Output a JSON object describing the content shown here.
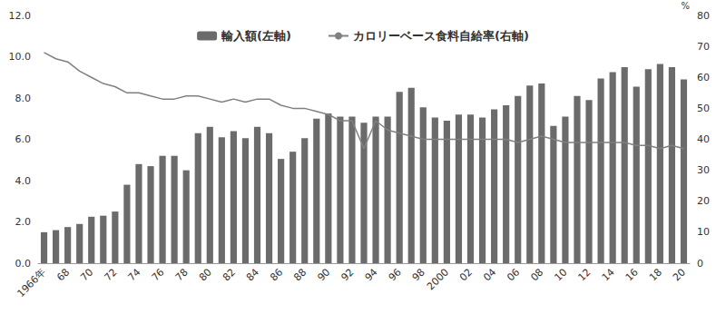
{
  "chart_data": {
    "type": "bar",
    "categories": [
      "1966年",
      null,
      "68",
      null,
      "70",
      null,
      "72",
      null,
      "74",
      null,
      "76",
      null,
      "78",
      null,
      "80",
      null,
      "82",
      null,
      "84",
      null,
      "86",
      null,
      "88",
      null,
      "90",
      null,
      "92",
      null,
      "94",
      null,
      "96",
      null,
      "98",
      null,
      "2000",
      null,
      "02",
      null,
      "04",
      null,
      "06",
      null,
      "08",
      null,
      "10",
      null,
      "12",
      null,
      "14",
      null,
      "16",
      null,
      "18",
      null,
      "20"
    ],
    "series": [
      {
        "name": "輸入額(左軸)",
        "type": "bar",
        "color": "#6b6b6b",
        "values": [
          1.5,
          1.6,
          1.75,
          1.9,
          2.25,
          2.3,
          2.5,
          3.8,
          4.8,
          4.7,
          5.2,
          5.2,
          4.5,
          6.3,
          6.6,
          6.1,
          6.4,
          6.05,
          6.6,
          6.3,
          5.05,
          5.4,
          6.05,
          7.0,
          7.25,
          7.1,
          7.1,
          6.8,
          7.1,
          7.1,
          8.3,
          8.5,
          7.55,
          7.05,
          6.9,
          7.2,
          7.2,
          7.05,
          7.45,
          7.65,
          8.1,
          8.6,
          8.7,
          6.65,
          7.1,
          8.1,
          7.9,
          8.95,
          9.25,
          9.5,
          8.55,
          9.4,
          9.65,
          9.5,
          8.9
        ]
      },
      {
        "name": "カロリーベース食料自給率(右軸)",
        "type": "line",
        "axis": "y2",
        "color": "#808080",
        "values": [
          68,
          66,
          65,
          62,
          60,
          58,
          57,
          55,
          55,
          54,
          53,
          53,
          54,
          54,
          53,
          52,
          53,
          52,
          53,
          53,
          51,
          50,
          50,
          49,
          48,
          46,
          46,
          37,
          46,
          43,
          42,
          41,
          40,
          40,
          40,
          40,
          40,
          40,
          40,
          40,
          39,
          40,
          41,
          40,
          39,
          39,
          39,
          39,
          39,
          39,
          38,
          38,
          37,
          38,
          37
        ]
      }
    ],
    "ylim": [
      0,
      12
    ],
    "yticks": [
      {
        "value": 0,
        "label": "0.0"
      },
      {
        "value": 2,
        "label": "2.0"
      },
      {
        "value": 4,
        "label": "4.0"
      },
      {
        "value": 6,
        "label": "6.0"
      },
      {
        "value": 8,
        "label": "8.0"
      },
      {
        "value": 10,
        "label": "10.0"
      },
      {
        "value": 12,
        "label": "12.0"
      }
    ],
    "y2label": "%",
    "y2lim": [
      0,
      80
    ],
    "y2ticks": [
      0,
      10,
      20,
      30,
      40,
      50,
      60,
      70,
      80
    ],
    "legend": "top",
    "grid": false
  }
}
